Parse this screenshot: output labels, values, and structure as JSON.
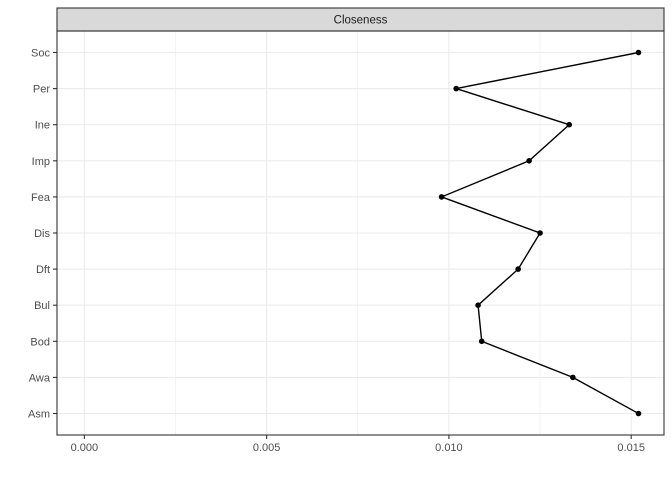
{
  "chart_data": {
    "type": "line",
    "title": "",
    "facet_label": "Closeness",
    "xlabel": "",
    "ylabel": "",
    "orientation": "horizontal",
    "categories": [
      "Asm",
      "Awa",
      "Bod",
      "Bul",
      "Dft",
      "Dis",
      "Fea",
      "Imp",
      "Ine",
      "Per",
      "Soc"
    ],
    "values": [
      0.0152,
      0.0134,
      0.0109,
      0.0108,
      0.0119,
      0.0125,
      0.0098,
      0.0122,
      0.0133,
      0.0102,
      0.0152
    ],
    "x_ticks": [
      0,
      0.005,
      0.01,
      0.015
    ],
    "x_tick_labels": [
      "0.000",
      "0.005",
      "0.010",
      "0.015"
    ],
    "xlim": [
      -0.00075,
      0.0159
    ],
    "grid": true,
    "colors": {
      "line": "#000000",
      "point": "#000000",
      "strip_bg": "#d9d9d9",
      "grid": "#ebebeb",
      "border": "#333333"
    }
  }
}
